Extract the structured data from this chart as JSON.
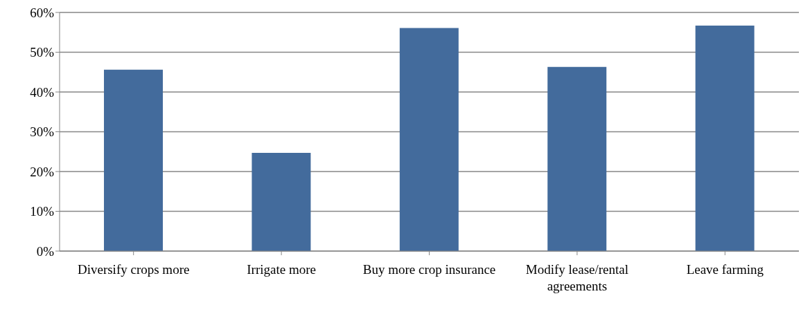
{
  "chart_data": {
    "type": "bar",
    "categories": [
      "Diversify crops more",
      "Irrigate more",
      "Buy more crop insurance",
      "Modify lease/rental agreements",
      "Leave farming"
    ],
    "values": [
      45.6,
      24.7,
      56.1,
      46.3,
      56.7
    ],
    "color": "#436b9c",
    "ylim": [
      0,
      60
    ],
    "yticks": [
      {
        "value": 0,
        "label": "0%"
      },
      {
        "value": 10,
        "label": "10%"
      },
      {
        "value": 20,
        "label": "20%"
      },
      {
        "value": 30,
        "label": "30%"
      },
      {
        "value": 40,
        "label": "40%"
      },
      {
        "value": 50,
        "label": "50%"
      },
      {
        "value": 60,
        "label": "60%"
      }
    ],
    "grid": "y",
    "legend": false
  }
}
